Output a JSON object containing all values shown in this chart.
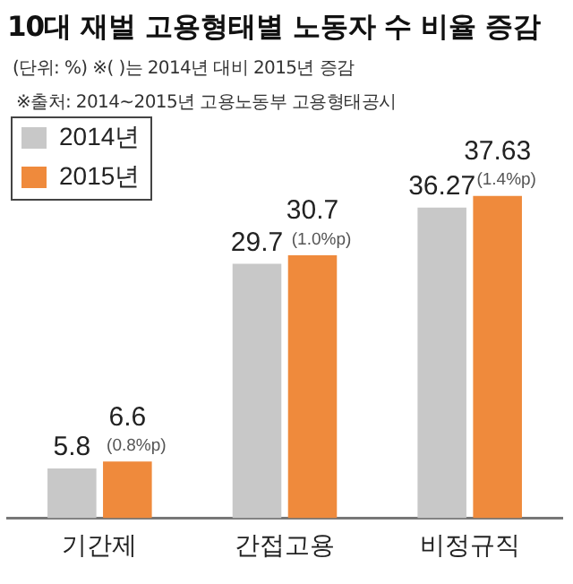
{
  "chart_data": {
    "type": "bar",
    "title": "10대 재벌 고용형태별 노동자 수 비율 증감",
    "subtitle": "(단위: %) ※( )는 2014년 대비 2015년 증감",
    "categories": [
      "기간제",
      "간접고용",
      "비정규직"
    ],
    "series": [
      {
        "name": "2014년",
        "color": "#c8c8c8",
        "values": [
          5.8,
          29.7,
          36.27
        ]
      },
      {
        "name": "2015년",
        "color": "#ef8a3c",
        "values": [
          6.6,
          30.7,
          37.63
        ]
      }
    ],
    "tick_labels": "x",
    "data_labels": true,
    "legend": "top left",
    "grid": false,
    "annotations": [
      "※출처: 2014~2015년 고용노동부 고용형태공시",
      {
        "text": "(0.8%p)",
        "x": "기간제",
        "y": 6.6
      },
      {
        "text": "(1.0%p)",
        "x": "간접고용",
        "y": 30.7
      },
      {
        "text": "(1.4%p)",
        "x": "비정규직",
        "y": 37.63
      }
    ]
  }
}
